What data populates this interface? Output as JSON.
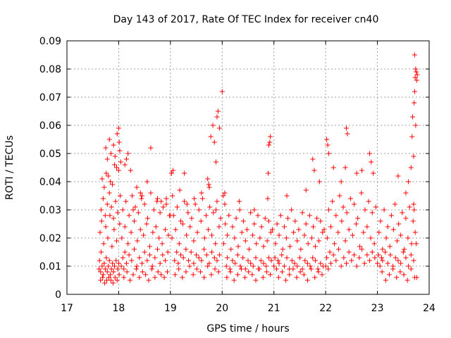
{
  "chart_data": {
    "type": "scatter",
    "title": "Day 143 of 2017, Rate Of TEC Index for receiver cn40",
    "xlabel": "GPS time / hours",
    "ylabel": "ROTI / TECUs",
    "xlim": [
      17,
      24
    ],
    "ylim": [
      0,
      0.09
    ],
    "x_ticks": [
      "17",
      "18",
      "19",
      "20",
      "21",
      "22",
      "23",
      "24"
    ],
    "y_ticks": [
      "0",
      "0.01",
      "0.02",
      "0.03",
      "0.04",
      "0.05",
      "0.06",
      "0.07",
      "0.08",
      "0.09"
    ],
    "grid": true,
    "marker": "plus",
    "color": "#ff0000",
    "series": [
      {
        "x": [
          17.62,
          17.63,
          17.65,
          17.66,
          17.68,
          17.7,
          17.72,
          17.74,
          17.76,
          17.78,
          17.8,
          17.82,
          17.84,
          17.86,
          17.88,
          17.9,
          17.92,
          17.95,
          17.98,
          18.0,
          17.64,
          17.67,
          17.71,
          17.75,
          17.79,
          17.83,
          17.87,
          17.91,
          17.96,
          18.02,
          17.66,
          17.7,
          17.74,
          17.78,
          17.82,
          17.86,
          17.9,
          17.94,
          17.98,
          18.03,
          17.65,
          17.69,
          17.73,
          17.77,
          17.81,
          17.85,
          17.89,
          17.93,
          17.97,
          18.01,
          17.68,
          17.76,
          17.84,
          17.92,
          18.0,
          17.72,
          17.8,
          17.88,
          17.96,
          18.04,
          17.75,
          17.78,
          17.82,
          17.85,
          17.9,
          17.93,
          17.97,
          18.0,
          18.01,
          18.02,
          18.05,
          18.08,
          18.1,
          18.12,
          18.15,
          18.2,
          18.25,
          18.3,
          18.35,
          18.4,
          18.45,
          18.5,
          18.55,
          18.6,
          18.65,
          18.7,
          18.75,
          18.8,
          18.85,
          18.9,
          18.95,
          18.06,
          18.12,
          18.18,
          18.24,
          18.3,
          18.36,
          18.42,
          18.48,
          18.54,
          18.6,
          18.66,
          18.72,
          18.78,
          18.84,
          18.9,
          18.96,
          18.08,
          18.14,
          18.2,
          18.26,
          18.32,
          18.38,
          18.44,
          18.5,
          18.56,
          18.62,
          18.68,
          18.74,
          18.8,
          18.86,
          18.92,
          18.98,
          18.1,
          18.16,
          18.22,
          18.28,
          18.34,
          18.4,
          18.46,
          18.52,
          18.58,
          18.64,
          18.7,
          18.76,
          18.82,
          18.88,
          18.94,
          18.12,
          18.18,
          18.23,
          18.35,
          18.42,
          18.55,
          18.75,
          18.92,
          18.15,
          18.28,
          18.45,
          18.62,
          18.82,
          19.0,
          19.02,
          19.05,
          19.08,
          19.12,
          19.15,
          19.2,
          19.25,
          19.3,
          19.35,
          19.4,
          19.45,
          19.5,
          19.55,
          19.6,
          19.65,
          19.7,
          19.75,
          19.8,
          19.85,
          19.9,
          19.95,
          19.03,
          19.1,
          19.17,
          19.24,
          19.31,
          19.38,
          19.45,
          19.52,
          19.59,
          19.66,
          19.73,
          19.8,
          19.87,
          19.94,
          19.06,
          19.13,
          19.2,
          19.27,
          19.34,
          19.41,
          19.48,
          19.55,
          19.62,
          19.69,
          19.76,
          19.83,
          19.9,
          19.97,
          19.09,
          19.16,
          19.23,
          19.3,
          19.37,
          19.44,
          19.51,
          19.58,
          19.65,
          19.72,
          19.79,
          19.86,
          19.93,
          19.04,
          19.18,
          19.32,
          19.46,
          19.6,
          19.74,
          19.88,
          19.02,
          19.27,
          19.72,
          19.75,
          19.78,
          19.82,
          19.85,
          19.88,
          19.9,
          19.92,
          19.95,
          20.0,
          20.02,
          20.05,
          20.08,
          20.1,
          20.15,
          20.2,
          20.25,
          20.3,
          20.35,
          20.4,
          20.45,
          20.5,
          20.55,
          20.6,
          20.65,
          20.7,
          20.75,
          20.8,
          20.85,
          20.9,
          20.95,
          20.03,
          20.1,
          20.17,
          20.24,
          20.31,
          20.38,
          20.45,
          20.52,
          20.59,
          20.66,
          20.73,
          20.8,
          20.87,
          20.94,
          20.06,
          20.13,
          20.2,
          20.27,
          20.34,
          20.41,
          20.48,
          20.55,
          20.62,
          20.69,
          20.76,
          20.83,
          20.9,
          20.97,
          20.09,
          20.16,
          20.23,
          20.3,
          20.37,
          20.44,
          20.51,
          20.58,
          20.65,
          20.72,
          20.79,
          20.86,
          20.93,
          20.05,
          20.33,
          20.62,
          20.88,
          20.9,
          20.92,
          20.93,
          20.89,
          21.0,
          21.02,
          21.05,
          21.08,
          21.1,
          21.15,
          21.2,
          21.25,
          21.3,
          21.35,
          21.4,
          21.45,
          21.5,
          21.55,
          21.6,
          21.65,
          21.7,
          21.75,
          21.8,
          21.85,
          21.9,
          21.95,
          21.03,
          21.1,
          21.17,
          21.24,
          21.31,
          21.38,
          21.45,
          21.52,
          21.59,
          21.66,
          21.73,
          21.8,
          21.87,
          21.94,
          21.06,
          21.13,
          21.2,
          21.27,
          21.34,
          21.41,
          21.48,
          21.55,
          21.62,
          21.69,
          21.76,
          21.83,
          21.9,
          21.97,
          21.09,
          21.16,
          21.23,
          21.3,
          21.37,
          21.44,
          21.51,
          21.58,
          21.65,
          21.72,
          21.79,
          21.86,
          21.93,
          21.25,
          21.62,
          21.75,
          21.78,
          21.88,
          22.0,
          22.02,
          22.05,
          22.08,
          22.1,
          22.15,
          22.2,
          22.25,
          22.3,
          22.35,
          22.4,
          22.45,
          22.5,
          22.55,
          22.6,
          22.65,
          22.7,
          22.75,
          22.8,
          22.85,
          22.9,
          22.95,
          22.03,
          22.1,
          22.17,
          22.24,
          22.31,
          22.38,
          22.45,
          22.52,
          22.59,
          22.66,
          22.73,
          22.8,
          22.87,
          22.94,
          22.06,
          22.13,
          22.2,
          22.27,
          22.34,
          22.41,
          22.48,
          22.55,
          22.62,
          22.69,
          22.76,
          22.83,
          22.9,
          22.97,
          22.02,
          22.04,
          22.06,
          22.15,
          22.3,
          22.38,
          22.4,
          22.42,
          22.6,
          22.7,
          22.85,
          22.88,
          22.92,
          23.0,
          23.02,
          23.05,
          23.08,
          23.1,
          23.15,
          23.2,
          23.25,
          23.3,
          23.35,
          23.4,
          23.45,
          23.5,
          23.55,
          23.6,
          23.65,
          23.7,
          23.75,
          23.03,
          23.1,
          23.17,
          23.24,
          23.31,
          23.38,
          23.45,
          23.52,
          23.59,
          23.66,
          23.73,
          23.06,
          23.13,
          23.2,
          23.27,
          23.34,
          23.41,
          23.48,
          23.55,
          23.62,
          23.69,
          23.76,
          23.09,
          23.16,
          23.23,
          23.3,
          23.37,
          23.44,
          23.51,
          23.58,
          23.65,
          23.72,
          23.4,
          23.55,
          23.6,
          23.65,
          23.67,
          23.68,
          23.7,
          23.71,
          23.72,
          23.73,
          23.74,
          23.75,
          23.76,
          23.77,
          23.72,
          23.74,
          23.7,
          23.71
        ],
        "y": [
          0.009,
          0.012,
          0.008,
          0.015,
          0.01,
          0.007,
          0.011,
          0.009,
          0.013,
          0.008,
          0.01,
          0.012,
          0.007,
          0.009,
          0.011,
          0.008,
          0.01,
          0.012,
          0.009,
          0.011,
          0.022,
          0.026,
          0.018,
          0.024,
          0.02,
          0.028,
          0.017,
          0.023,
          0.019,
          0.025,
          0.03,
          0.034,
          0.028,
          0.032,
          0.036,
          0.031,
          0.027,
          0.033,
          0.029,
          0.035,
          0.005,
          0.006,
          0.004,
          0.005,
          0.006,
          0.005,
          0.004,
          0.006,
          0.005,
          0.007,
          0.041,
          0.043,
          0.04,
          0.046,
          0.044,
          0.038,
          0.042,
          0.039,
          0.045,
          0.047,
          0.052,
          0.048,
          0.055,
          0.05,
          0.053,
          0.049,
          0.057,
          0.059,
          0.054,
          0.051,
          0.01,
          0.013,
          0.009,
          0.015,
          0.011,
          0.014,
          0.012,
          0.016,
          0.01,
          0.013,
          0.011,
          0.015,
          0.012,
          0.014,
          0.01,
          0.013,
          0.016,
          0.011,
          0.014,
          0.012,
          0.015,
          0.02,
          0.024,
          0.018,
          0.022,
          0.026,
          0.019,
          0.023,
          0.021,
          0.025,
          0.017,
          0.022,
          0.024,
          0.02,
          0.018,
          0.023,
          0.021,
          0.03,
          0.033,
          0.028,
          0.035,
          0.031,
          0.029,
          0.034,
          0.032,
          0.027,
          0.036,
          0.03,
          0.033,
          0.029,
          0.031,
          0.034,
          0.028,
          0.006,
          0.008,
          0.005,
          0.007,
          0.009,
          0.006,
          0.008,
          0.007,
          0.005,
          0.009,
          0.006,
          0.008,
          0.007,
          0.006,
          0.008,
          0.046,
          0.05,
          0.044,
          0.038,
          0.036,
          0.04,
          0.034,
          0.032,
          0.048,
          0.03,
          0.035,
          0.052,
          0.033,
          0.028,
          0.043,
          0.044,
          0.012,
          0.015,
          0.011,
          0.014,
          0.013,
          0.016,
          0.012,
          0.015,
          0.011,
          0.014,
          0.013,
          0.012,
          0.016,
          0.014,
          0.011,
          0.015,
          0.013,
          0.012,
          0.014,
          0.02,
          0.023,
          0.018,
          0.025,
          0.021,
          0.024,
          0.019,
          0.022,
          0.026,
          0.02,
          0.023,
          0.021,
          0.018,
          0.024,
          0.028,
          0.031,
          0.026,
          0.033,
          0.029,
          0.027,
          0.032,
          0.03,
          0.034,
          0.028,
          0.031,
          0.029,
          0.033,
          0.027,
          0.007,
          0.009,
          0.006,
          0.008,
          0.01,
          0.007,
          0.009,
          0.008,
          0.006,
          0.01,
          0.007,
          0.009,
          0.008,
          0.035,
          0.037,
          0.032,
          0.034,
          0.036,
          0.039,
          0.03,
          0.043,
          0.043,
          0.041,
          0.038,
          0.056,
          0.06,
          0.054,
          0.047,
          0.063,
          0.065,
          0.059,
          0.072,
          0.035,
          0.036,
          0.01,
          0.013,
          0.009,
          0.012,
          0.011,
          0.014,
          0.01,
          0.013,
          0.009,
          0.012,
          0.011,
          0.01,
          0.013,
          0.009,
          0.012,
          0.011,
          0.01,
          0.013,
          0.012,
          0.018,
          0.021,
          0.016,
          0.02,
          0.017,
          0.022,
          0.019,
          0.016,
          0.021,
          0.018,
          0.02,
          0.017,
          0.019,
          0.022,
          0.025,
          0.028,
          0.024,
          0.027,
          0.03,
          0.026,
          0.023,
          0.029,
          0.025,
          0.028,
          0.024,
          0.027,
          0.026,
          0.023,
          0.006,
          0.008,
          0.005,
          0.007,
          0.009,
          0.006,
          0.008,
          0.007,
          0.005,
          0.009,
          0.006,
          0.008,
          0.007,
          0.032,
          0.033,
          0.03,
          0.034,
          0.053,
          0.054,
          0.056,
          0.043,
          0.01,
          0.013,
          0.009,
          0.012,
          0.011,
          0.014,
          0.01,
          0.013,
          0.009,
          0.012,
          0.011,
          0.01,
          0.013,
          0.009,
          0.012,
          0.011,
          0.01,
          0.013,
          0.012,
          0.009,
          0.011,
          0.01,
          0.018,
          0.021,
          0.016,
          0.02,
          0.017,
          0.022,
          0.019,
          0.016,
          0.021,
          0.018,
          0.02,
          0.017,
          0.019,
          0.022,
          0.025,
          0.028,
          0.024,
          0.027,
          0.03,
          0.026,
          0.023,
          0.029,
          0.025,
          0.028,
          0.024,
          0.027,
          0.026,
          0.023,
          0.006,
          0.008,
          0.005,
          0.007,
          0.009,
          0.006,
          0.008,
          0.007,
          0.005,
          0.009,
          0.006,
          0.008,
          0.007,
          0.035,
          0.037,
          0.048,
          0.044,
          0.04,
          0.01,
          0.013,
          0.009,
          0.015,
          0.011,
          0.014,
          0.012,
          0.016,
          0.01,
          0.013,
          0.011,
          0.015,
          0.012,
          0.014,
          0.01,
          0.013,
          0.016,
          0.011,
          0.014,
          0.012,
          0.015,
          0.013,
          0.02,
          0.024,
          0.018,
          0.022,
          0.026,
          0.019,
          0.023,
          0.021,
          0.025,
          0.017,
          0.022,
          0.024,
          0.02,
          0.018,
          0.03,
          0.033,
          0.028,
          0.035,
          0.031,
          0.029,
          0.034,
          0.032,
          0.027,
          0.036,
          0.03,
          0.033,
          0.029,
          0.031,
          0.055,
          0.053,
          0.05,
          0.045,
          0.04,
          0.045,
          0.059,
          0.057,
          0.043,
          0.044,
          0.05,
          0.047,
          0.043,
          0.011,
          0.014,
          0.01,
          0.013,
          0.012,
          0.015,
          0.011,
          0.014,
          0.01,
          0.013,
          0.012,
          0.011,
          0.015,
          0.013,
          0.01,
          0.014,
          0.012,
          0.018,
          0.022,
          0.016,
          0.02,
          0.017,
          0.023,
          0.019,
          0.021,
          0.016,
          0.02,
          0.018,
          0.022,
          0.026,
          0.03,
          0.024,
          0.028,
          0.032,
          0.025,
          0.029,
          0.027,
          0.031,
          0.026,
          0.006,
          0.008,
          0.005,
          0.007,
          0.009,
          0.006,
          0.008,
          0.007,
          0.005,
          0.009,
          0.006,
          0.042,
          0.036,
          0.04,
          0.045,
          0.056,
          0.063,
          0.049,
          0.068,
          0.072,
          0.077,
          0.08,
          0.079,
          0.076,
          0.078,
          0.085,
          0.06,
          0.032,
          0.03
        ]
      }
    ]
  }
}
